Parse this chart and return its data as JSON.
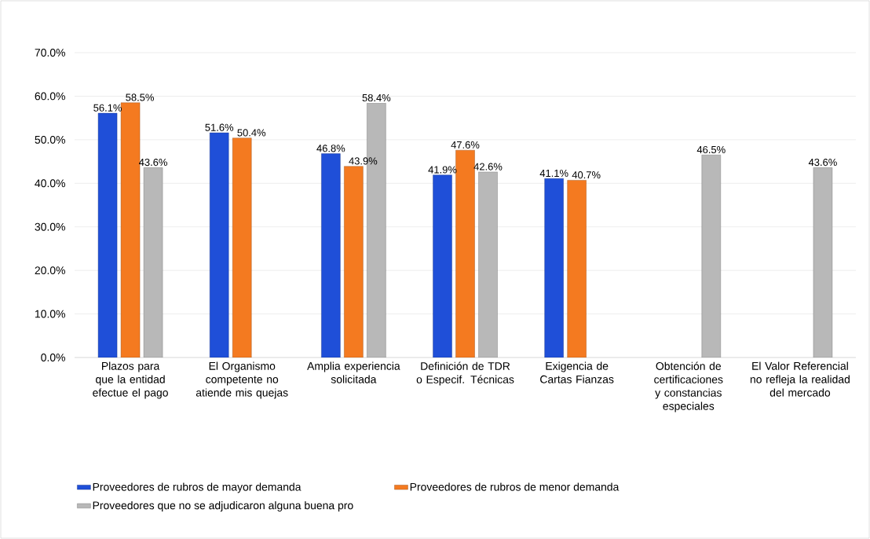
{
  "chart_data": {
    "type": "bar",
    "categories": [
      "Plazos para que la entidad efectue el pago",
      "El Organismo competente no atiende mis quejas",
      "Amplia experiencia solicitada",
      "Definición de TDR o Especif. Técnicas",
      "Exigencia de Cartas Fianzas",
      "Obtención de certificaciones y constancias especiales",
      "El Valor Referencial no refleja la realidad del mercado"
    ],
    "series": [
      {
        "name": "Proveedores de rubros de mayor demanda",
        "color": "#1f4fd8",
        "values": [
          56.1,
          51.6,
          46.8,
          41.9,
          41.1,
          null,
          null
        ],
        "value_labels": [
          "56.1%",
          "51.6%",
          "46.8%",
          "41.9%",
          "41.1%",
          null,
          null
        ]
      },
      {
        "name": "Proveedores de rubros de menor demanda",
        "color": "#f47a20",
        "values": [
          58.5,
          50.4,
          43.9,
          47.6,
          40.7,
          null,
          null
        ],
        "value_labels": [
          "58.5%",
          "50.4%",
          "43.9%",
          "47.6%",
          "40.7%",
          null,
          null
        ]
      },
      {
        "name": "Proveedores que no se adjudicaron alguna buena pro",
        "color": "#b8b8b8",
        "values": [
          43.6,
          null,
          58.4,
          42.6,
          null,
          46.5,
          43.6
        ],
        "value_labels": [
          "43.6%",
          null,
          "58.4%",
          "42.6%",
          null,
          "46.5%",
          "43.6%"
        ]
      }
    ],
    "ylim": [
      0,
      70
    ],
    "yticks": [
      {
        "value": 0,
        "label": "0.0%"
      },
      {
        "value": 10,
        "label": "10.0%"
      },
      {
        "value": 20,
        "label": "20.0%"
      },
      {
        "value": 30,
        "label": "30.0%"
      },
      {
        "value": 40,
        "label": "40.0%"
      },
      {
        "value": 50,
        "label": "50.0%"
      },
      {
        "value": 60,
        "label": "60.0%"
      },
      {
        "value": 70,
        "label": "70.0%"
      }
    ],
    "grid": "y",
    "legend": "bottom"
  }
}
